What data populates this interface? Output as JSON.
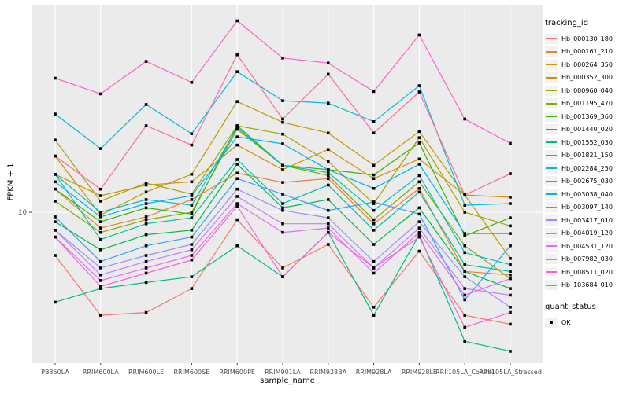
{
  "chart_data": {
    "type": "line",
    "title": "",
    "xlabel": "sample_name",
    "ylabel": "FPKM + 1",
    "y_scale": "log10",
    "ylim": [
      1.9,
      97
    ],
    "grid": "major-only",
    "panel_bg": "#EBEBEB",
    "grid_color": "#FFFFFF",
    "marker": "black-square",
    "legend_position": "right",
    "y_ticks": [
      {
        "value": 10,
        "label": "10"
      }
    ],
    "categories": [
      "PB350LA",
      "RRIM600LA",
      "RRIM600LE",
      "RRIM600SE",
      "RRIM600PE",
      "RRIM901LA",
      "RRIM928BA",
      "RRIM928LA",
      "RRIM928LE",
      "RRII105LA_Control",
      "RRII105LA_Stressed"
    ],
    "series": [
      {
        "name": "Hb_000130_180",
        "color": "#F8766D",
        "values": [
          6.2,
          3.2,
          3.3,
          4.3,
          9.2,
          5.4,
          7.0,
          3.5,
          6.5,
          3.2,
          2.9
        ]
      },
      {
        "name": "Hb_000161_210",
        "color": "#EA8331",
        "values": [
          12.9,
          8.4,
          9.5,
          11.5,
          15.4,
          13.9,
          14.5,
          8.8,
          13.0,
          5.2,
          5.0
        ]
      },
      {
        "name": "Hb_000264_350",
        "color": "#D89000",
        "values": [
          15.2,
          12.0,
          13.5,
          14.0,
          21.0,
          16.0,
          20.0,
          14.5,
          18.0,
          12.1,
          11.8
        ]
      },
      {
        "name": "Hb_000352_300",
        "color": "#C09B00",
        "values": [
          18.6,
          9.7,
          12.5,
          15.2,
          34.0,
          27.0,
          24.0,
          16.8,
          24.4,
          12.1,
          6.0
        ]
      },
      {
        "name": "Hb_000960_040",
        "color": "#A3A500",
        "values": [
          22.2,
          11.3,
          13.8,
          12.2,
          26.0,
          23.7,
          17.5,
          11.0,
          22.8,
          10.0,
          8.6
        ]
      },
      {
        "name": "Hb_001195_470",
        "color": "#7CAE00",
        "values": [
          11.3,
          8.0,
          9.2,
          10.0,
          25.0,
          16.8,
          15.0,
          9.2,
          14.0,
          6.9,
          4.8
        ]
      },
      {
        "name": "Hb_001369_360",
        "color": "#39B600",
        "values": [
          12.9,
          9.0,
          10.5,
          9.8,
          26.0,
          16.8,
          16.0,
          15.1,
          21.5,
          7.7,
          9.4
        ]
      },
      {
        "name": "Hb_001440_020",
        "color": "#00BB4E",
        "values": [
          9.0,
          6.6,
          7.8,
          8.2,
          17.0,
          10.5,
          11.5,
          7.0,
          10.5,
          5.2,
          4.3
        ]
      },
      {
        "name": "Hb_001552_030",
        "color": "#00BF7D",
        "values": [
          3.7,
          4.3,
          4.6,
          4.9,
          6.9,
          4.9,
          8.0,
          3.2,
          7.8,
          2.4,
          2.15
        ]
      },
      {
        "name": "Hb_001821_150",
        "color": "#00C1A3",
        "values": [
          15.2,
          7.4,
          8.8,
          9.4,
          17.9,
          11.0,
          13.5,
          8.2,
          12.5,
          5.6,
          5.2
        ]
      },
      {
        "name": "Hb_002284_250",
        "color": "#00BFC4",
        "values": [
          15.2,
          10.0,
          11.5,
          10.8,
          25.5,
          16.8,
          15.5,
          10.2,
          15.0,
          6.4,
          5.6
        ]
      },
      {
        "name": "Hb_002675_030",
        "color": "#00BAE0",
        "values": [
          29.6,
          20.2,
          32.9,
          23.8,
          47.3,
          34.3,
          33.4,
          27.2,
          40.5,
          10.8,
          11.0
        ]
      },
      {
        "name": "Hb_003038_040",
        "color": "#00B0F6",
        "values": [
          14.0,
          9.5,
          11.0,
          12.0,
          23.0,
          21.3,
          16.0,
          13.0,
          17.0,
          7.9,
          7.9
        ]
      },
      {
        "name": "Hb_003097_140",
        "color": "#35A2FF",
        "values": [
          9.5,
          5.8,
          6.9,
          7.6,
          14.5,
          12.2,
          10.2,
          11.2,
          9.8,
          3.8,
          6.9
        ]
      },
      {
        "name": "Hb_003417_010",
        "color": "#9590FF",
        "values": [
          8.2,
          5.4,
          6.2,
          7.0,
          12.9,
          10.2,
          9.4,
          5.8,
          9.0,
          4.9,
          3.5
        ]
      },
      {
        "name": "Hb_004019_120",
        "color": "#C77CFF",
        "values": [
          8.2,
          5.0,
          5.8,
          6.6,
          11.9,
          8.8,
          8.8,
          5.4,
          8.4,
          4.3,
          4.0
        ]
      },
      {
        "name": "Hb_004531_120",
        "color": "#E76BF3",
        "values": [
          7.6,
          4.7,
          5.4,
          6.2,
          11.0,
          8.0,
          8.4,
          5.1,
          8.0,
          4.0,
          4.8
        ]
      },
      {
        "name": "Hb_007982_030",
        "color": "#FA62DB",
        "values": [
          7.6,
          4.4,
          5.1,
          5.9,
          10.7,
          4.9,
          8.0,
          5.4,
          7.6,
          2.8,
          3.3
        ]
      },
      {
        "name": "Hb_008511_020",
        "color": "#FF61CC",
        "values": [
          44,
          37,
          53,
          42,
          83,
          55,
          52,
          38,
          71,
          28,
          21.4
        ]
      },
      {
        "name": "Hb_103684_010",
        "color": "#FF6A98",
        "values": [
          18.6,
          12.9,
          26,
          21,
          57,
          28,
          46,
          24,
          37.8,
          12.1,
          15.3
        ]
      }
    ]
  },
  "legend": {
    "tracking_title": "tracking_id",
    "quant_title": "quant_status",
    "quant_items": [
      {
        "label": "OK"
      }
    ]
  }
}
